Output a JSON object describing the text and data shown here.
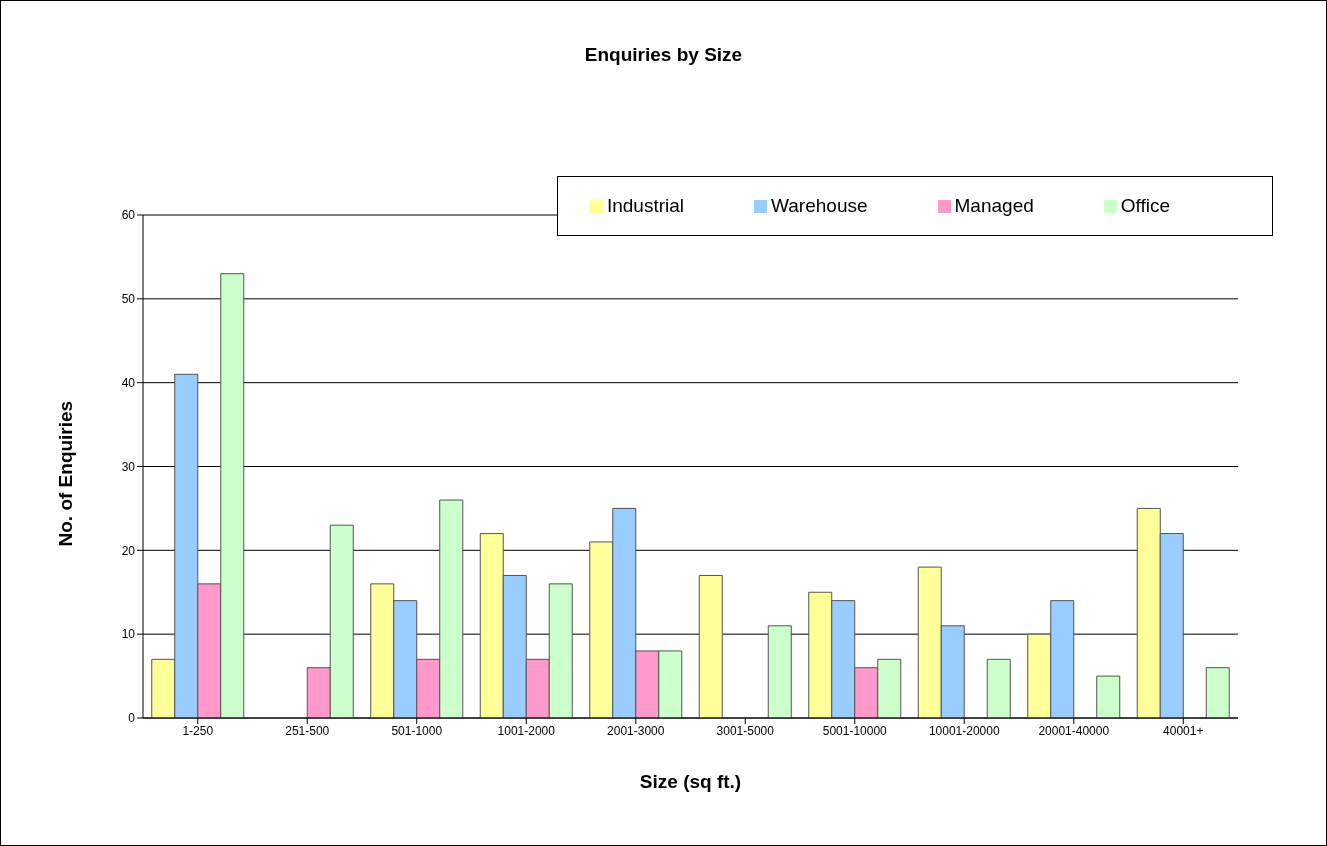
{
  "chart_data": {
    "type": "bar",
    "title": "Enquiries by Size",
    "xlabel": "Size (sq ft.)",
    "ylabel": "No. of Enquiries",
    "categories": [
      "1-250",
      "251-500",
      "501-1000",
      "1001-2000",
      "2001-3000",
      "3001-5000",
      "5001-10000",
      "10001-20000",
      "20001-40000",
      "40001+"
    ],
    "series": [
      {
        "name": "Industrial",
        "color": "#ffff99",
        "values": [
          7,
          null,
          16,
          22,
          21,
          17,
          15,
          18,
          10,
          25
        ]
      },
      {
        "name": "Warehouse",
        "color": "#99ccff",
        "values": [
          41,
          null,
          14,
          17,
          25,
          null,
          14,
          11,
          14,
          22
        ]
      },
      {
        "name": "Managed",
        "color": "#ff99cc",
        "values": [
          16,
          6,
          7,
          7,
          8,
          null,
          6,
          null,
          null,
          null
        ]
      },
      {
        "name": "Office",
        "color": "#ccffcc",
        "values": [
          53,
          23,
          26,
          16,
          8,
          11,
          7,
          7,
          5,
          6
        ]
      }
    ],
    "ylim": [
      0,
      60
    ],
    "yticks": [
      0,
      10,
      20,
      30,
      40,
      50,
      60
    ],
    "grid": "y",
    "legend": "top right"
  }
}
